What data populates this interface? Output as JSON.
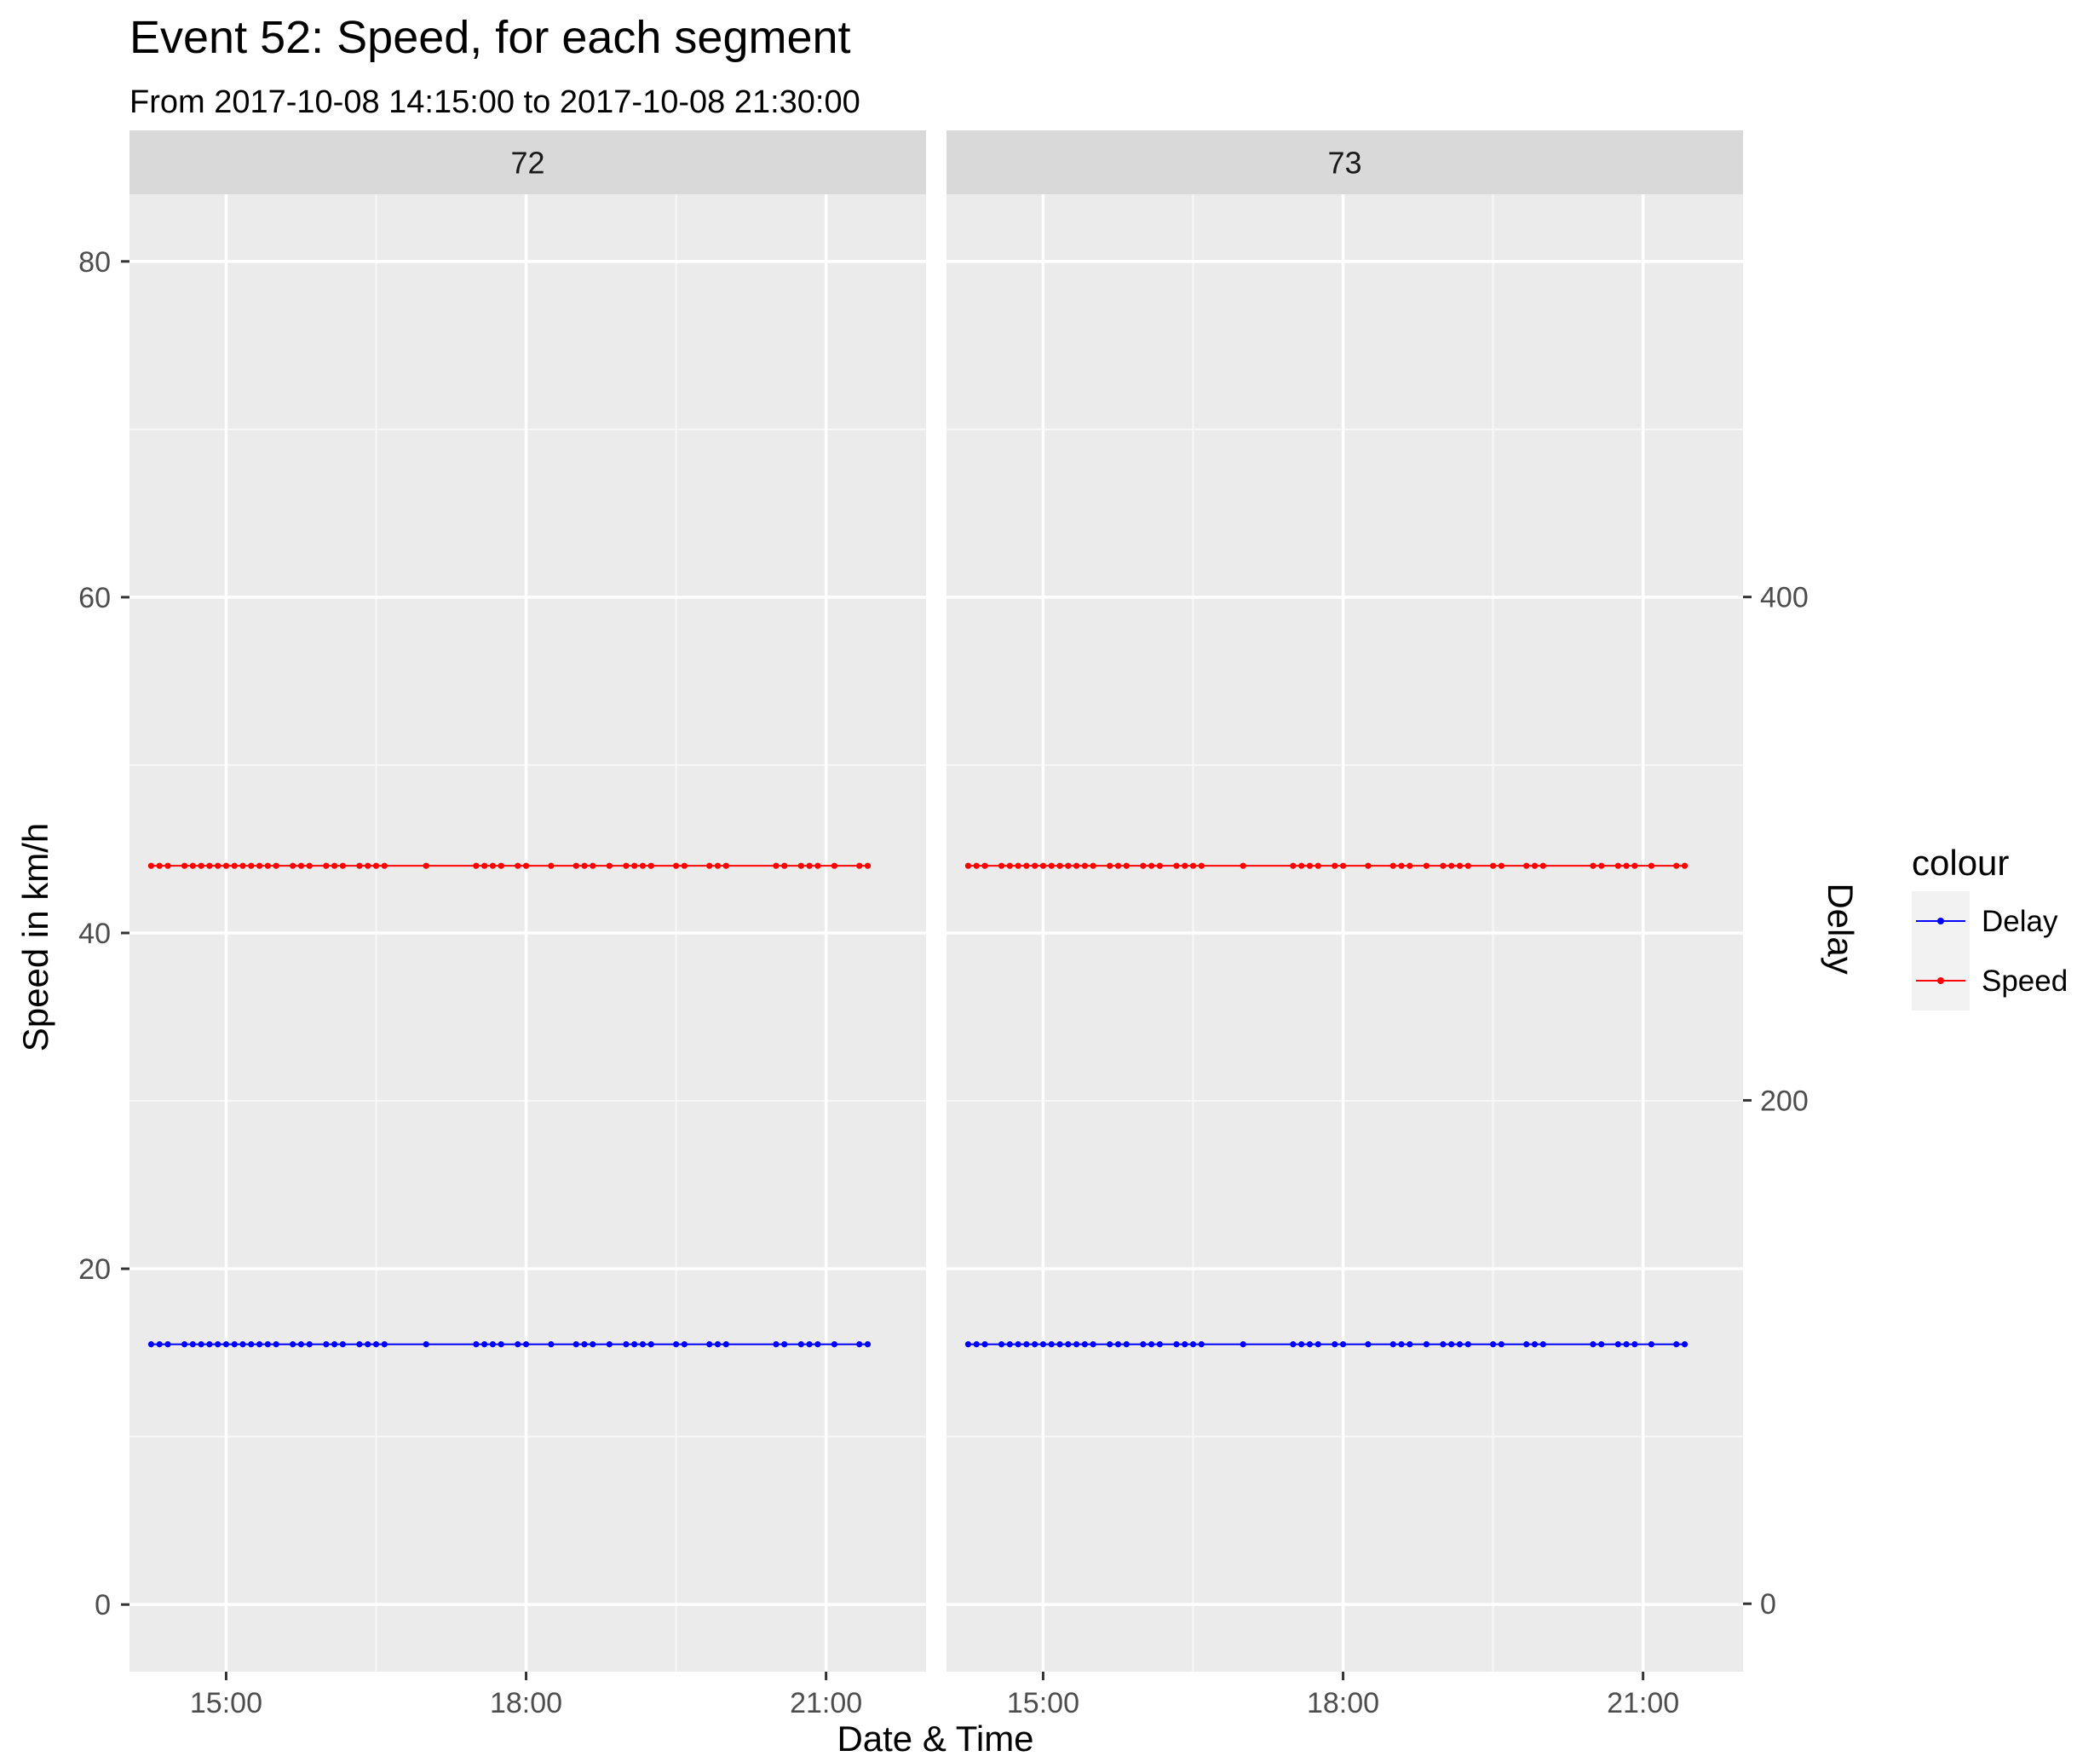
{
  "chart_data": {
    "type": "line",
    "title": "Event 52: Speed, for each segment",
    "subtitle": "From 2017-10-08 14:15:00 to 2017-10-08 21:30:00",
    "xlabel": "Date & Time",
    "ylabel": "Speed in km/h",
    "y2label": "Delay",
    "xlim": [
      "2017-10-08 14:02",
      "2017-10-08 22:00"
    ],
    "ylim": [
      -4,
      84
    ],
    "y2lim": [
      -27,
      560
    ],
    "x_ticks": [
      "15:00",
      "18:00",
      "21:00"
    ],
    "y_ticks": [
      0,
      20,
      40,
      60,
      80
    ],
    "y2_ticks": [
      0,
      200,
      400
    ],
    "grid": true,
    "legend_position": "right",
    "legend": {
      "title": "colour",
      "entries": [
        {
          "label": "Delay",
          "color": "#0000ff"
        },
        {
          "label": "Speed",
          "color": "#ff0000"
        }
      ]
    },
    "panels": [
      {
        "label": "72",
        "times": [
          "14:15",
          "14:20",
          "14:25",
          "14:35",
          "14:40",
          "14:45",
          "14:50",
          "14:55",
          "15:00",
          "15:05",
          "15:10",
          "15:15",
          "15:20",
          "15:25",
          "15:30",
          "15:40",
          "15:45",
          "15:50",
          "16:00",
          "16:05",
          "16:10",
          "16:20",
          "16:25",
          "16:30",
          "16:35",
          "17:00",
          "17:30",
          "17:35",
          "17:40",
          "17:45",
          "17:55",
          "18:00",
          "18:15",
          "18:30",
          "18:35",
          "18:40",
          "18:50",
          "19:00",
          "19:05",
          "19:10",
          "19:15",
          "19:30",
          "19:35",
          "19:50",
          "19:55",
          "20:00",
          "20:30",
          "20:35",
          "20:45",
          "20:50",
          "20:55",
          "21:05",
          "21:20",
          "21:25"
        ],
        "series": [
          {
            "name": "Speed",
            "value": 44
          },
          {
            "name": "Delay",
            "value": 15.5
          }
        ]
      },
      {
        "label": "73",
        "times": [
          "14:15",
          "14:20",
          "14:25",
          "14:35",
          "14:40",
          "14:45",
          "14:50",
          "14:55",
          "15:00",
          "15:05",
          "15:10",
          "15:15",
          "15:20",
          "15:25",
          "15:30",
          "15:40",
          "15:45",
          "15:50",
          "16:00",
          "16:05",
          "16:10",
          "16:20",
          "16:25",
          "16:30",
          "16:35",
          "17:00",
          "17:30",
          "17:35",
          "17:40",
          "17:45",
          "17:55",
          "18:00",
          "18:15",
          "18:30",
          "18:35",
          "18:40",
          "18:50",
          "19:00",
          "19:05",
          "19:10",
          "19:15",
          "19:30",
          "19:35",
          "19:50",
          "19:55",
          "20:00",
          "20:30",
          "20:35",
          "20:45",
          "20:50",
          "20:55",
          "21:05",
          "21:20",
          "21:25"
        ],
        "series": [
          {
            "name": "Speed",
            "value": 44
          },
          {
            "name": "Delay",
            "value": 15.5
          }
        ]
      }
    ]
  }
}
